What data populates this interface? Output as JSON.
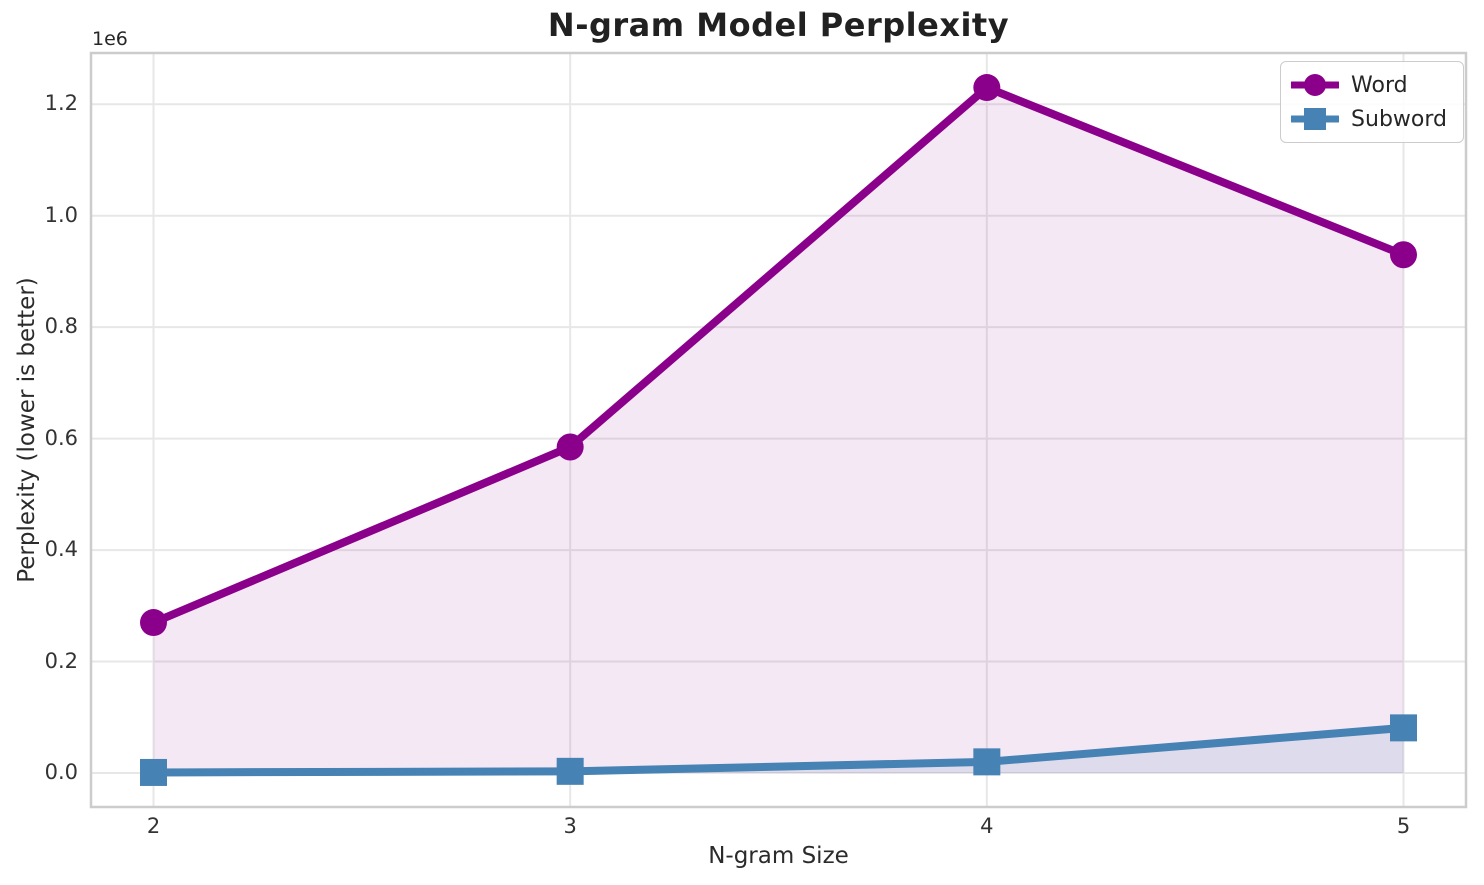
{
  "chart_data": {
    "type": "line",
    "title": "N-gram Model Perplexity",
    "xlabel": "N-gram Size",
    "ylabel": "Perplexity (lower is better)",
    "y_offset_text": "1e6",
    "x": [
      2,
      3,
      4,
      5
    ],
    "series": [
      {
        "name": "Word",
        "color": "#8B008B",
        "marker": "circle",
        "values": [
          270000,
          585000,
          1230000,
          930000
        ],
        "fill_alpha": 0.09
      },
      {
        "name": "Subword",
        "color": "#4682B4",
        "marker": "square",
        "values": [
          1000,
          3000,
          20000,
          81000
        ],
        "fill_alpha": 0.13
      }
    ],
    "fill_to_zero": true,
    "xlim": [
      1.85,
      5.15
    ],
    "ylim": [
      -61000,
      1292000
    ],
    "x_ticks": [
      2,
      3,
      4,
      5
    ],
    "x_tick_labels": [
      "2",
      "3",
      "4",
      "5"
    ],
    "y_ticks": [
      0,
      200000,
      400000,
      600000,
      800000,
      1000000,
      1200000
    ],
    "y_tick_labels": [
      "0.0",
      "0.2",
      "0.4",
      "0.6",
      "0.8",
      "1.0",
      "1.2"
    ],
    "grid": true,
    "legend_position": "upper right",
    "colors": {
      "grid": "#e7e7e7",
      "spine": "#cccccc",
      "background": "#ffffff",
      "text": "#262626"
    }
  }
}
